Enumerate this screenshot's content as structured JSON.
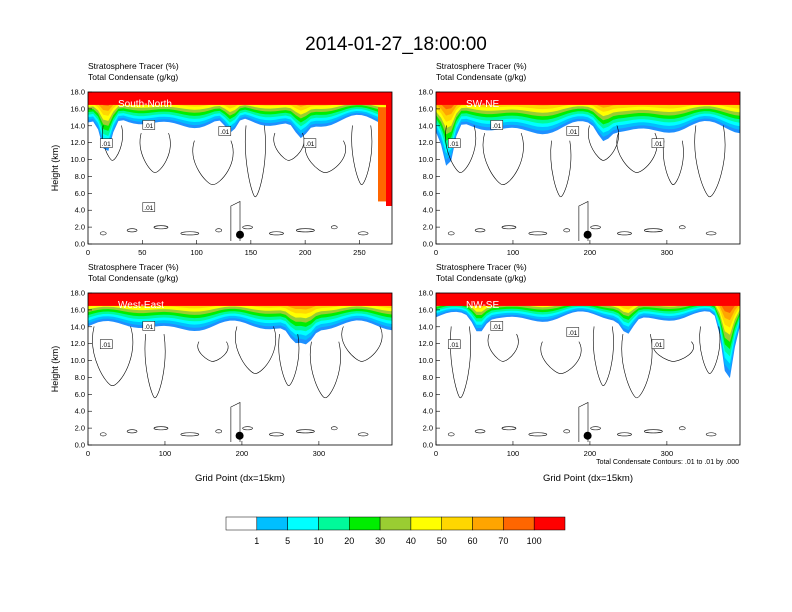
{
  "figure": {
    "title": "2014-01-27_18:00:00",
    "contour_note": "Total Condensate Contours: .01 to .01 by .000",
    "ylabel": "Height (km)",
    "xlabel": "Grid Point (dx=15km)"
  },
  "chart_data": [
    {
      "type": "heatmap",
      "panel": "South-North",
      "label": "South-North",
      "header": [
        "Stratosphere Tracer   (%)",
        "Total Condensate   (g/kg)"
      ],
      "ylabel": "Height (km)",
      "xlabel": "",
      "xlim": [
        0,
        280
      ],
      "ylim": [
        0,
        18
      ],
      "xticks": [
        0,
        50,
        100,
        150,
        200,
        250
      ],
      "yticks": [
        "0.0",
        "2.0",
        "4.0",
        "6.0",
        "8.0",
        "10.0",
        "12.0",
        "14.0",
        "16.0",
        "18.0"
      ],
      "contour_labels": [
        ".01",
        ".01",
        ".01",
        ".01",
        ".01"
      ],
      "marker": {
        "x": 140,
        "y": 1.1
      }
    },
    {
      "type": "heatmap",
      "panel": "SW-NE",
      "label": "SW-NE",
      "header": [
        "Stratosphere Tracer   (%)",
        "Total Condensate   (g/kg)"
      ],
      "ylabel": "",
      "xlabel": "",
      "xlim": [
        0,
        395
      ],
      "ylim": [
        0,
        18
      ],
      "xticks": [
        0,
        100,
        200,
        300
      ],
      "yticks": [
        "0.0",
        "2.0",
        "4.0",
        "6.0",
        "8.0",
        "10.0",
        "12.0",
        "14.0",
        "16.0",
        "18.0"
      ],
      "contour_labels": [
        ".01",
        ".01",
        ".01",
        ".01"
      ],
      "marker": {
        "x": 197,
        "y": 1.1
      }
    },
    {
      "type": "heatmap",
      "panel": "West-East",
      "label": "West-East",
      "header": [
        "Stratosphere Tracer   (%)",
        "Total Condensate   (g/kg)"
      ],
      "ylabel": "Height (km)",
      "xlabel": "Grid Point (dx=15km)",
      "xlim": [
        0,
        395
      ],
      "ylim": [
        0,
        18
      ],
      "xticks": [
        0,
        100,
        200,
        300
      ],
      "yticks": [
        "0.0",
        "2.0",
        "4.0",
        "6.0",
        "8.0",
        "10.0",
        "12.0",
        "14.0",
        "16.0",
        "18.0"
      ],
      "contour_labels": [
        ".01",
        ".01"
      ],
      "marker": {
        "x": 197,
        "y": 1.1
      }
    },
    {
      "type": "heatmap",
      "panel": "NW-SE",
      "label": "NW-SE",
      "header": [
        "Stratosphere Tracer   (%)",
        "Total Condensate   (g/kg)"
      ],
      "ylabel": "",
      "xlabel": "Grid Point (dx=15km)",
      "xlim": [
        0,
        395
      ],
      "ylim": [
        0,
        18
      ],
      "xticks": [
        0,
        100,
        200,
        300
      ],
      "yticks": [
        "0.0",
        "2.0",
        "4.0",
        "6.0",
        "8.0",
        "10.0",
        "12.0",
        "14.0",
        "16.0",
        "18.0"
      ],
      "contour_labels": [
        ".01",
        ".01",
        ".01",
        ".01"
      ],
      "marker": {
        "x": 197,
        "y": 1.1
      }
    }
  ],
  "colorbar": {
    "labels": [
      "1",
      "5",
      "10",
      "20",
      "30",
      "40",
      "50",
      "60",
      "70",
      "100"
    ],
    "colors": [
      "#ffffff",
      "#1e90ff",
      "#00bfff",
      "#00ffff",
      "#00fa9a",
      "#00ee00",
      "#9acd32",
      "#ffff00",
      "#ffd700",
      "#ffa500",
      "#ff6600",
      "#ff0000"
    ]
  }
}
